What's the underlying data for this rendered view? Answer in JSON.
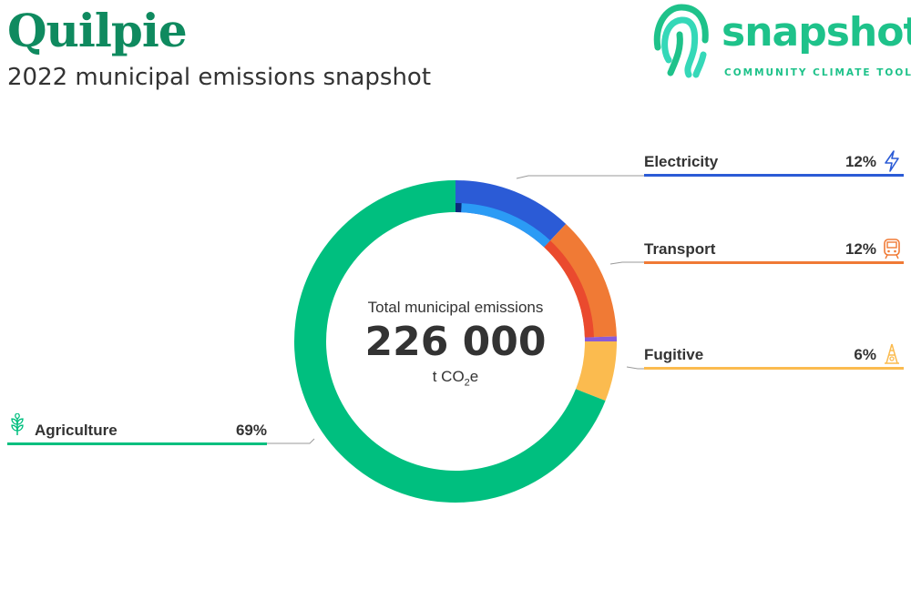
{
  "header": {
    "title": "Quilpie",
    "subtitle": "2022 municipal emissions snapshot"
  },
  "logo": {
    "wordmark": "snapshot",
    "tagline": "COMMUNITY CLIMATE TOOL",
    "icon": "fingerprint-icon",
    "color": "#1ec28a"
  },
  "chart_data": {
    "type": "pie",
    "style": "donut",
    "center": {
      "label": "Total municipal emissions",
      "value": "226 000",
      "unit_prefix": "t CO",
      "unit_sub": "2",
      "unit_suffix": "e"
    },
    "categories": [
      {
        "name": "Electricity",
        "percent_label": "12%",
        "value": 12,
        "color": "#2b5bd6",
        "icon": "lightning-icon",
        "inner_subsegments": [
          {
            "value": 0.7,
            "color": "#0b2a7a"
          },
          {
            "value": 11.3,
            "color": "#2b9bf5"
          }
        ]
      },
      {
        "name": "Transport",
        "percent_label": "12%",
        "value": 12.5,
        "color": "#f07a35",
        "icon": "train-icon",
        "inner_subsegments": [
          {
            "value": 12.5,
            "color": "#ea4a2e"
          }
        ]
      },
      {
        "name": "Fugitive",
        "percent_label": "6%",
        "value": 0.5,
        "color": "#8a5bd6",
        "icon": "oil-rig-icon",
        "segment_only": true
      },
      {
        "name": "Fugitive",
        "percent_label": "6%",
        "value": 6,
        "color": "#fbbb4f",
        "icon": "oil-rig-icon"
      },
      {
        "name": "Agriculture",
        "percent_label": "69%",
        "value": 69,
        "color": "#00bf7f",
        "icon": "wheat-icon"
      }
    ]
  }
}
